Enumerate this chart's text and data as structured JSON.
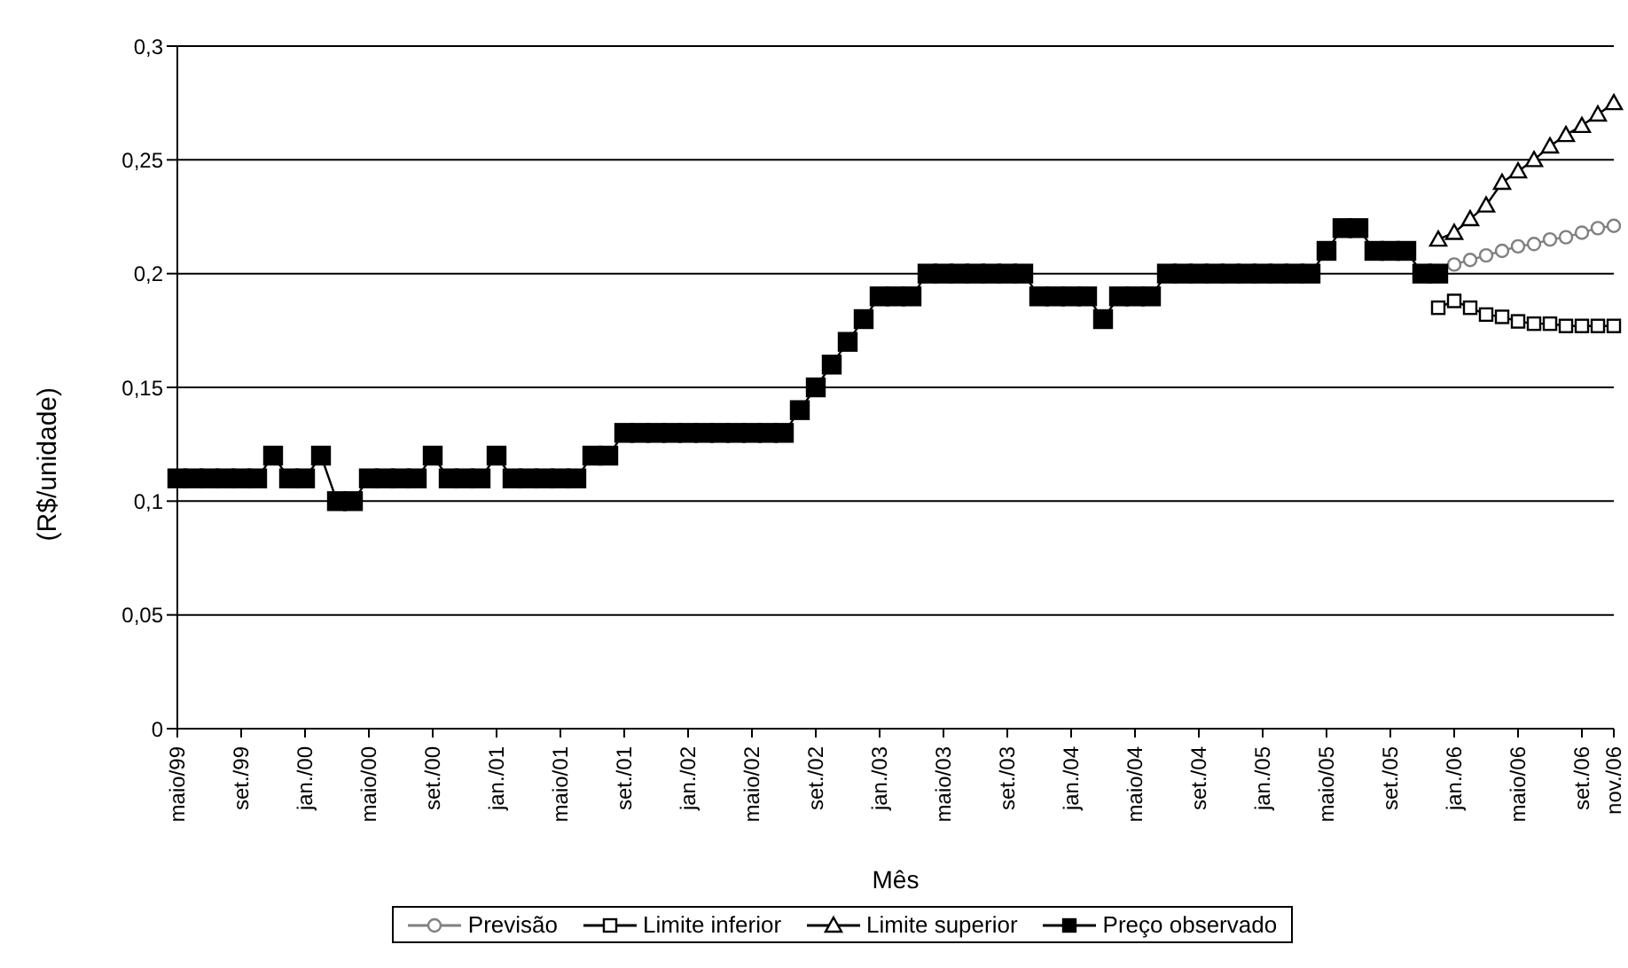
{
  "chart_data": {
    "type": "line",
    "xlabel": "Mês",
    "ylabel": "(R$/unidade)",
    "categories": [
      "maio/99",
      null,
      null,
      null,
      "set./99",
      null,
      null,
      null,
      "jan./00",
      null,
      null,
      null,
      "maio/00",
      null,
      null,
      null,
      "set./00",
      null,
      null,
      null,
      "jan./01",
      null,
      null,
      null,
      "maio/01",
      null,
      null,
      null,
      "set./01",
      null,
      null,
      null,
      "jan./02",
      null,
      null,
      null,
      "maio/02",
      null,
      null,
      null,
      "set./02",
      null,
      null,
      null,
      "jan./03",
      null,
      null,
      null,
      "maio/03",
      null,
      null,
      null,
      "set./03",
      null,
      null,
      null,
      "jan./04",
      null,
      null,
      null,
      "maio/04",
      null,
      null,
      null,
      "set./04",
      null,
      null,
      null,
      "jan./05",
      null,
      null,
      null,
      "maio/05",
      null,
      null,
      null,
      "set./05",
      null,
      null,
      null,
      "jan./06",
      null,
      null,
      null,
      "maio/06",
      null,
      null,
      null,
      "set./06",
      null,
      "nov./06"
    ],
    "series": [
      {
        "name": "Previsão",
        "color": "#808080",
        "marker": "circle",
        "values": [
          null,
          null,
          null,
          null,
          null,
          null,
          null,
          null,
          null,
          null,
          null,
          null,
          null,
          null,
          null,
          null,
          null,
          null,
          null,
          null,
          null,
          null,
          null,
          null,
          null,
          null,
          null,
          null,
          null,
          null,
          null,
          null,
          null,
          null,
          null,
          null,
          null,
          null,
          null,
          null,
          null,
          null,
          null,
          null,
          null,
          null,
          null,
          null,
          null,
          null,
          null,
          null,
          null,
          null,
          null,
          null,
          null,
          null,
          null,
          null,
          null,
          null,
          null,
          null,
          null,
          null,
          null,
          null,
          null,
          null,
          null,
          null,
          null,
          null,
          null,
          null,
          null,
          null,
          null,
          null,
          0.204,
          0.206,
          0.208,
          0.21,
          0.212,
          0.213,
          0.215,
          0.216,
          0.218,
          0.22,
          0.221
        ]
      },
      {
        "name": "Limite inferior",
        "color": "#000000",
        "marker": "square",
        "values": [
          null,
          null,
          null,
          null,
          null,
          null,
          null,
          null,
          null,
          null,
          null,
          null,
          null,
          null,
          null,
          null,
          null,
          null,
          null,
          null,
          null,
          null,
          null,
          null,
          null,
          null,
          null,
          null,
          null,
          null,
          null,
          null,
          null,
          null,
          null,
          null,
          null,
          null,
          null,
          null,
          null,
          null,
          null,
          null,
          null,
          null,
          null,
          null,
          null,
          null,
          null,
          null,
          null,
          null,
          null,
          null,
          null,
          null,
          null,
          null,
          null,
          null,
          null,
          null,
          null,
          null,
          null,
          null,
          null,
          null,
          null,
          null,
          null,
          null,
          null,
          null,
          null,
          null,
          null,
          0.185,
          0.188,
          0.185,
          0.182,
          0.181,
          0.179,
          0.178,
          0.178,
          0.177,
          0.177,
          0.177,
          0.177
        ]
      },
      {
        "name": "Limite superior",
        "color": "#000000",
        "marker": "triangle",
        "values": [
          null,
          null,
          null,
          null,
          null,
          null,
          null,
          null,
          null,
          null,
          null,
          null,
          null,
          null,
          null,
          null,
          null,
          null,
          null,
          null,
          null,
          null,
          null,
          null,
          null,
          null,
          null,
          null,
          null,
          null,
          null,
          null,
          null,
          null,
          null,
          null,
          null,
          null,
          null,
          null,
          null,
          null,
          null,
          null,
          null,
          null,
          null,
          null,
          null,
          null,
          null,
          null,
          null,
          null,
          null,
          null,
          null,
          null,
          null,
          null,
          null,
          null,
          null,
          null,
          null,
          null,
          null,
          null,
          null,
          null,
          null,
          null,
          null,
          null,
          null,
          null,
          null,
          null,
          null,
          0.215,
          0.218,
          0.224,
          0.23,
          0.24,
          0.245,
          0.25,
          0.256,
          0.261,
          0.265,
          0.27,
          0.275
        ]
      },
      {
        "name": "Preço observado",
        "color": "#000000",
        "marker": "square",
        "values": [
          0.11,
          0.11,
          0.11,
          0.11,
          0.11,
          0.11,
          0.12,
          0.11,
          0.11,
          0.12,
          0.1,
          0.1,
          0.11,
          0.11,
          0.11,
          0.11,
          0.12,
          0.11,
          0.11,
          0.11,
          0.12,
          0.11,
          0.11,
          0.11,
          0.11,
          0.11,
          0.12,
          0.12,
          0.13,
          0.13,
          0.13,
          0.13,
          0.13,
          0.13,
          0.13,
          0.13,
          0.13,
          0.13,
          0.13,
          0.14,
          0.15,
          0.16,
          0.17,
          0.18,
          0.19,
          0.19,
          0.19,
          0.2,
          0.2,
          0.2,
          0.2,
          0.2,
          0.2,
          0.2,
          0.19,
          0.19,
          0.19,
          0.19,
          0.18,
          0.19,
          0.19,
          0.19,
          0.2,
          0.2,
          0.2,
          0.2,
          0.2,
          0.2,
          0.2,
          0.2,
          0.2,
          0.2,
          0.21,
          0.22,
          0.22,
          0.21,
          0.21,
          0.21,
          0.2,
          0.2,
          null,
          null,
          null,
          null,
          null,
          null,
          null,
          null,
          null,
          null,
          null
        ]
      }
    ],
    "ylim": [
      0,
      0.3
    ],
    "yticks": [
      0,
      {
        "value": 0.05,
        "label": "0,05"
      },
      {
        "value": 0.1,
        "label": "0,1"
      },
      {
        "value": 0.15,
        "label": "0,15"
      },
      {
        "value": 0.2,
        "label": "0,2"
      },
      {
        "value": 0.25,
        "label": "0,25"
      },
      {
        "value": 0.3,
        "label": "0,3"
      }
    ],
    "grid": "y",
    "legend": "bottom",
    "line_style": "solid"
  }
}
